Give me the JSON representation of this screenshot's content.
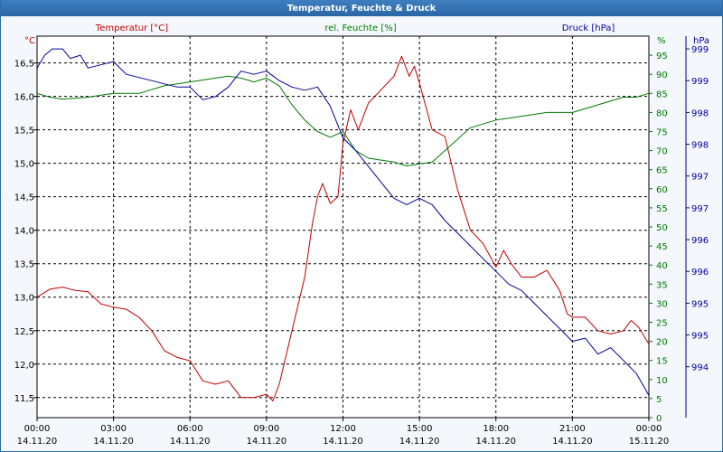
{
  "window": {
    "title": "Temperatur, Feuchte & Druck"
  },
  "chart_data": {
    "type": "line",
    "title": "Temperatur, Feuchte & Druck",
    "grid": true,
    "x_ticks": [
      {
        "time": "00:00",
        "date": "14.11.20"
      },
      {
        "time": "03:00",
        "date": "14.11.20"
      },
      {
        "time": "06:00",
        "date": "14.11.20"
      },
      {
        "time": "09:00",
        "date": "14.11.20"
      },
      {
        "time": "12:00",
        "date": "14.11.20"
      },
      {
        "time": "15:00",
        "date": "14.11.20"
      },
      {
        "time": "18:00",
        "date": "14.11.20"
      },
      {
        "time": "21:00",
        "date": "14.11.20"
      },
      {
        "time": "00:00",
        "date": "15.11.20"
      }
    ],
    "xlim_hours": [
      0,
      24
    ],
    "axes": {
      "temperature": {
        "label": "Temperatur [°C]",
        "unit": "°C",
        "color": "#c00000",
        "ylim": [
          11.2,
          16.9
        ],
        "ticks": [
          "16,5",
          "16,0",
          "15,5",
          "15,0",
          "14,5",
          "14,0",
          "13,5",
          "13,0",
          "12,5",
          "12,0",
          "11,5"
        ],
        "tick_values": [
          16.5,
          16.0,
          15.5,
          15.0,
          14.5,
          14.0,
          13.5,
          13.0,
          12.5,
          12.0,
          11.5
        ]
      },
      "humidity": {
        "label": "rel. Feuchte [%]",
        "unit": "%",
        "color": "#007a00",
        "ylim": [
          0,
          100
        ],
        "ticks": [
          "95",
          "90",
          "85",
          "80",
          "75",
          "70",
          "65",
          "60",
          "55",
          "50",
          "45",
          "40",
          "35",
          "30",
          "25",
          "20",
          "15",
          "10",
          "5",
          "0"
        ],
        "tick_values": [
          95,
          90,
          85,
          80,
          75,
          70,
          65,
          60,
          55,
          50,
          45,
          40,
          35,
          30,
          25,
          20,
          15,
          10,
          5,
          0
        ]
      },
      "pressure": {
        "label": "Druck [hPa]",
        "unit": "hPa",
        "color": "#00009a",
        "ylim": [
          993.5,
          999.5
        ],
        "ticks": [
          "999",
          "999",
          "998",
          "998",
          "997",
          "997",
          "996",
          "996",
          "995",
          "995",
          "994"
        ],
        "tick_values": [
          999.3,
          998.8,
          998.3,
          997.8,
          997.3,
          996.8,
          996.3,
          995.8,
          995.3,
          994.8,
          994.3
        ]
      }
    },
    "series": [
      {
        "name": "Temperatur [°C]",
        "axis": "temperature",
        "color": "#c00000",
        "x": [
          0,
          0.5,
          1,
          1.5,
          2,
          2.5,
          3,
          3.5,
          4,
          4.5,
          5,
          5.5,
          6,
          6.5,
          7,
          7.5,
          8,
          8.5,
          9,
          9.25,
          9.5,
          10,
          10.5,
          10.8,
          11,
          11.2,
          11.5,
          11.8,
          12,
          12.3,
          12.6,
          13,
          13.5,
          14,
          14.3,
          14.6,
          14.8,
          15,
          15.5,
          16,
          16.5,
          17,
          17.5,
          18,
          18.3,
          18.6,
          19,
          19.5,
          20,
          20.5,
          20.8,
          21,
          21.5,
          22,
          22.5,
          23,
          23.3,
          23.6,
          24
        ],
        "values": [
          13.0,
          13.12,
          13.15,
          13.1,
          13.08,
          12.9,
          12.85,
          12.82,
          12.7,
          12.5,
          12.2,
          12.1,
          12.05,
          11.75,
          11.7,
          11.75,
          11.5,
          11.5,
          11.55,
          11.45,
          11.7,
          12.5,
          13.3,
          14.1,
          14.5,
          14.7,
          14.4,
          14.5,
          15.3,
          15.8,
          15.5,
          15.9,
          16.1,
          16.3,
          16.6,
          16.3,
          16.45,
          16.2,
          15.5,
          15.4,
          14.6,
          14.0,
          13.8,
          13.45,
          13.7,
          13.5,
          13.3,
          13.3,
          13.4,
          13.1,
          12.75,
          12.7,
          12.7,
          12.5,
          12.45,
          12.5,
          12.65,
          12.55,
          12.3
        ]
      },
      {
        "name": "rel. Feuchte [%]",
        "axis": "humidity",
        "color": "#007a00",
        "x": [
          0,
          0.5,
          1,
          2,
          3,
          4,
          5,
          6,
          7,
          7.5,
          8,
          8.5,
          9,
          9.5,
          10,
          10.5,
          11,
          11.5,
          12,
          12.5,
          13,
          14,
          14.5,
          15,
          15.5,
          16,
          17,
          18,
          19,
          20,
          21,
          22,
          23,
          23.5,
          24
        ],
        "values": [
          85,
          84,
          83.5,
          84,
          85,
          85,
          87,
          88,
          89,
          89.5,
          89,
          88,
          89,
          87,
          82,
          78,
          75,
          73.5,
          75,
          70,
          68,
          67,
          66,
          66.5,
          67,
          70,
          76,
          78,
          79,
          80,
          80,
          82,
          84,
          84,
          85
        ]
      },
      {
        "name": "Druck [hPa]",
        "axis": "pressure",
        "color": "#00009a",
        "x": [
          0,
          0.3,
          0.6,
          1,
          1.3,
          1.7,
          2,
          2.5,
          3,
          3.5,
          4,
          4.5,
          5,
          5.5,
          6,
          6.5,
          7,
          7.5,
          8,
          8.5,
          9,
          9.5,
          10,
          10.5,
          11,
          11.5,
          12,
          12.5,
          13,
          13.5,
          14,
          14.5,
          15,
          15.5,
          16,
          16.5,
          17,
          17.5,
          18,
          18.5,
          19,
          19.5,
          20,
          20.5,
          21,
          21.5,
          22,
          22.5,
          23,
          23.5,
          24
        ],
        "values": [
          999.0,
          999.2,
          999.3,
          999.3,
          999.15,
          999.2,
          999.0,
          999.05,
          999.1,
          998.9,
          998.85,
          998.8,
          998.75,
          998.7,
          998.7,
          998.5,
          998.55,
          998.7,
          998.95,
          998.9,
          998.95,
          998.8,
          998.7,
          998.65,
          998.7,
          998.4,
          997.9,
          997.7,
          997.45,
          997.2,
          996.95,
          996.85,
          996.95,
          996.85,
          996.6,
          996.4,
          996.2,
          996.0,
          995.8,
          995.6,
          995.5,
          995.3,
          995.1,
          994.9,
          994.7,
          994.75,
          994.5,
          994.6,
          994.4,
          994.2,
          993.85
        ]
      }
    ]
  }
}
